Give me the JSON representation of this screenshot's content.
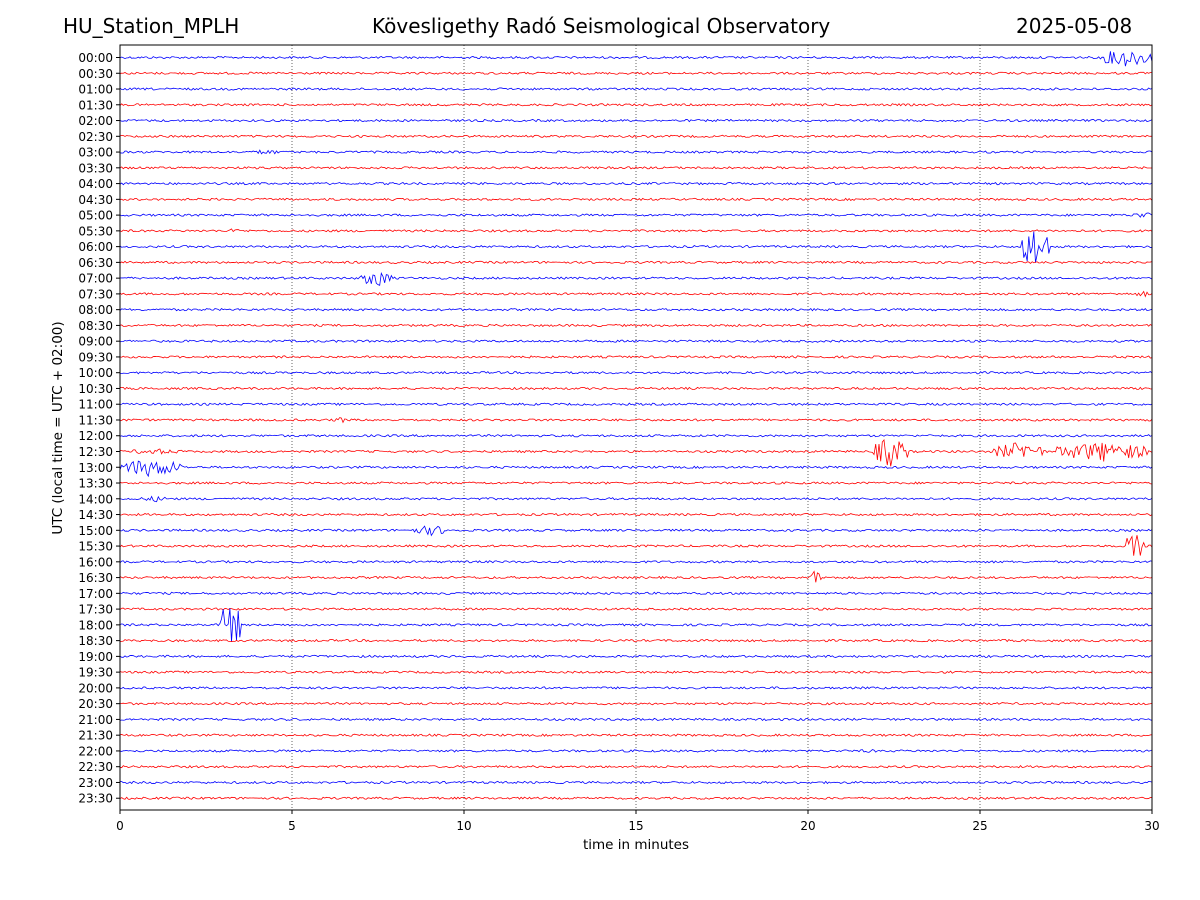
{
  "header": {
    "station": "HU_Station_MPLH",
    "title": "Kövesligethy Radó Seismological Observatory",
    "date": "2025-05-08"
  },
  "chart_data": {
    "type": "line",
    "title": "Kövesligethy Radó Seismological Observatory",
    "xlabel": "time in minutes",
    "ylabel": "UTC (local time = UTC + 02:00)",
    "xlim": [
      0,
      30
    ],
    "x_ticks": [
      "0",
      "5",
      "10",
      "15",
      "20",
      "25",
      "30"
    ],
    "grid": "vertical dotted lines at 5-minute intervals",
    "colors": {
      "even_rows": "#0000ff",
      "odd_rows": "#ff0000"
    },
    "rows": [
      "00:00",
      "00:30",
      "01:00",
      "01:30",
      "02:00",
      "02:30",
      "03:00",
      "03:30",
      "04:00",
      "04:30",
      "05:00",
      "05:30",
      "06:00",
      "06:30",
      "07:00",
      "07:30",
      "08:00",
      "08:30",
      "09:00",
      "09:30",
      "10:00",
      "10:30",
      "11:00",
      "11:30",
      "12:00",
      "12:30",
      "13:00",
      "13:30",
      "14:00",
      "14:30",
      "15:00",
      "15:30",
      "16:00",
      "16:30",
      "17:00",
      "17:30",
      "18:00",
      "18:30",
      "19:00",
      "19:30",
      "20:00",
      "20:30",
      "21:00",
      "21:30",
      "22:00",
      "22:30",
      "23:00",
      "23:30"
    ],
    "events": [
      {
        "row": "00:00",
        "start_min": 28.5,
        "end_min": 30.0,
        "amplitude": 1.1
      },
      {
        "row": "03:00",
        "start_min": 3.9,
        "end_min": 4.6,
        "amplitude": 0.35
      },
      {
        "row": "05:00",
        "start_min": 29.4,
        "end_min": 30.0,
        "amplitude": 0.4
      },
      {
        "row": "05:30",
        "start_min": 3.2,
        "end_min": 3.5,
        "amplitude": 0.4
      },
      {
        "row": "06:00",
        "start_min": 26.2,
        "end_min": 27.0,
        "amplitude": 2.6
      },
      {
        "row": "07:00",
        "start_min": 7.0,
        "end_min": 7.9,
        "amplitude": 1.0
      },
      {
        "row": "07:30",
        "start_min": 29.5,
        "end_min": 30.0,
        "amplitude": 0.35
      },
      {
        "row": "11:30",
        "start_min": 6.2,
        "end_min": 6.6,
        "amplitude": 0.4
      },
      {
        "row": "12:30",
        "start_min": 0.2,
        "end_min": 1.8,
        "amplitude": 0.35
      },
      {
        "row": "12:30",
        "start_min": 21.9,
        "end_min": 22.9,
        "amplitude": 1.8
      },
      {
        "row": "12:30",
        "start_min": 25.4,
        "end_min": 26.9,
        "amplitude": 1.1
      },
      {
        "row": "12:30",
        "start_min": 27.2,
        "end_min": 29.9,
        "amplitude": 1.2
      },
      {
        "row": "13:00",
        "start_min": 0.0,
        "end_min": 1.8,
        "amplitude": 1.1
      },
      {
        "row": "14:00",
        "start_min": 0.6,
        "end_min": 1.5,
        "amplitude": 0.35
      },
      {
        "row": "15:00",
        "start_min": 8.5,
        "end_min": 9.6,
        "amplitude": 0.6
      },
      {
        "row": "15:30",
        "start_min": 29.2,
        "end_min": 29.8,
        "amplitude": 1.6
      },
      {
        "row": "16:30",
        "start_min": 20.0,
        "end_min": 20.5,
        "amplitude": 0.9
      },
      {
        "row": "18:00",
        "start_min": 2.9,
        "end_min": 3.5,
        "amplitude": 3.0
      },
      {
        "row": "22:00",
        "start_min": 21.5,
        "end_min": 22.0,
        "amplitude": 0.25
      }
    ]
  }
}
